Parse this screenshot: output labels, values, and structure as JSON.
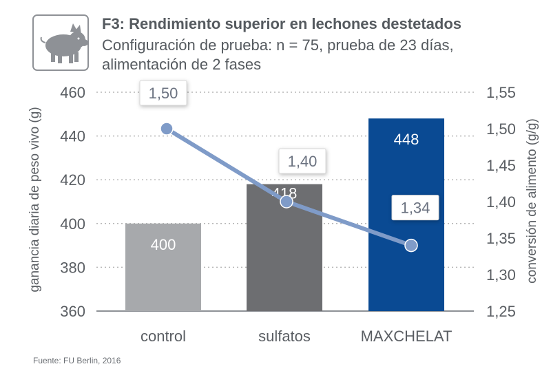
{
  "header": {
    "title": "F3: Rendimiento superior en lechones destetados",
    "subtitle_line1": "Configuración de prueba: n = 75, prueba de 23 días,",
    "subtitle_line2": "alimentación de 2 fases",
    "icon": "pig-icon"
  },
  "source": "Fuente: FU Berlin, 2016",
  "colors": {
    "bar_control": "#a7a9ac",
    "bar_sulfatos": "#6d6e71",
    "bar_maxchelat": "#0a4a93",
    "line": "#7f9bc8",
    "grid": "#b5b5b5",
    "text": "#5a5e63"
  },
  "chart_data": {
    "type": "bar",
    "categories": [
      "control",
      "sulfatos",
      "MAXCHELAT"
    ],
    "values": [
      400,
      418,
      448
    ],
    "value_labels": [
      "400",
      "418",
      "448"
    ],
    "ylabel": "ganancia diaria de peso vivo (g)",
    "ylim": [
      360,
      460
    ],
    "yticks": [
      "460",
      "440",
      "420",
      "400",
      "380",
      "360"
    ],
    "ytick_values": [
      460,
      440,
      420,
      400,
      380,
      360
    ],
    "grid": true,
    "secondary": {
      "type": "line",
      "values": [
        1.5,
        1.4,
        1.34
      ],
      "value_labels": [
        "1,50",
        "1,40",
        "1,34"
      ],
      "ylabel": "conversión de alimento (g/g)",
      "ylim": [
        1.25,
        1.55
      ],
      "yticks": [
        "1,55",
        "1,50",
        "1,45",
        "1,40",
        "1,35",
        "1,30",
        "1,25"
      ],
      "ytick_values": [
        1.55,
        1.5,
        1.45,
        1.4,
        1.35,
        1.3,
        1.25
      ]
    }
  }
}
